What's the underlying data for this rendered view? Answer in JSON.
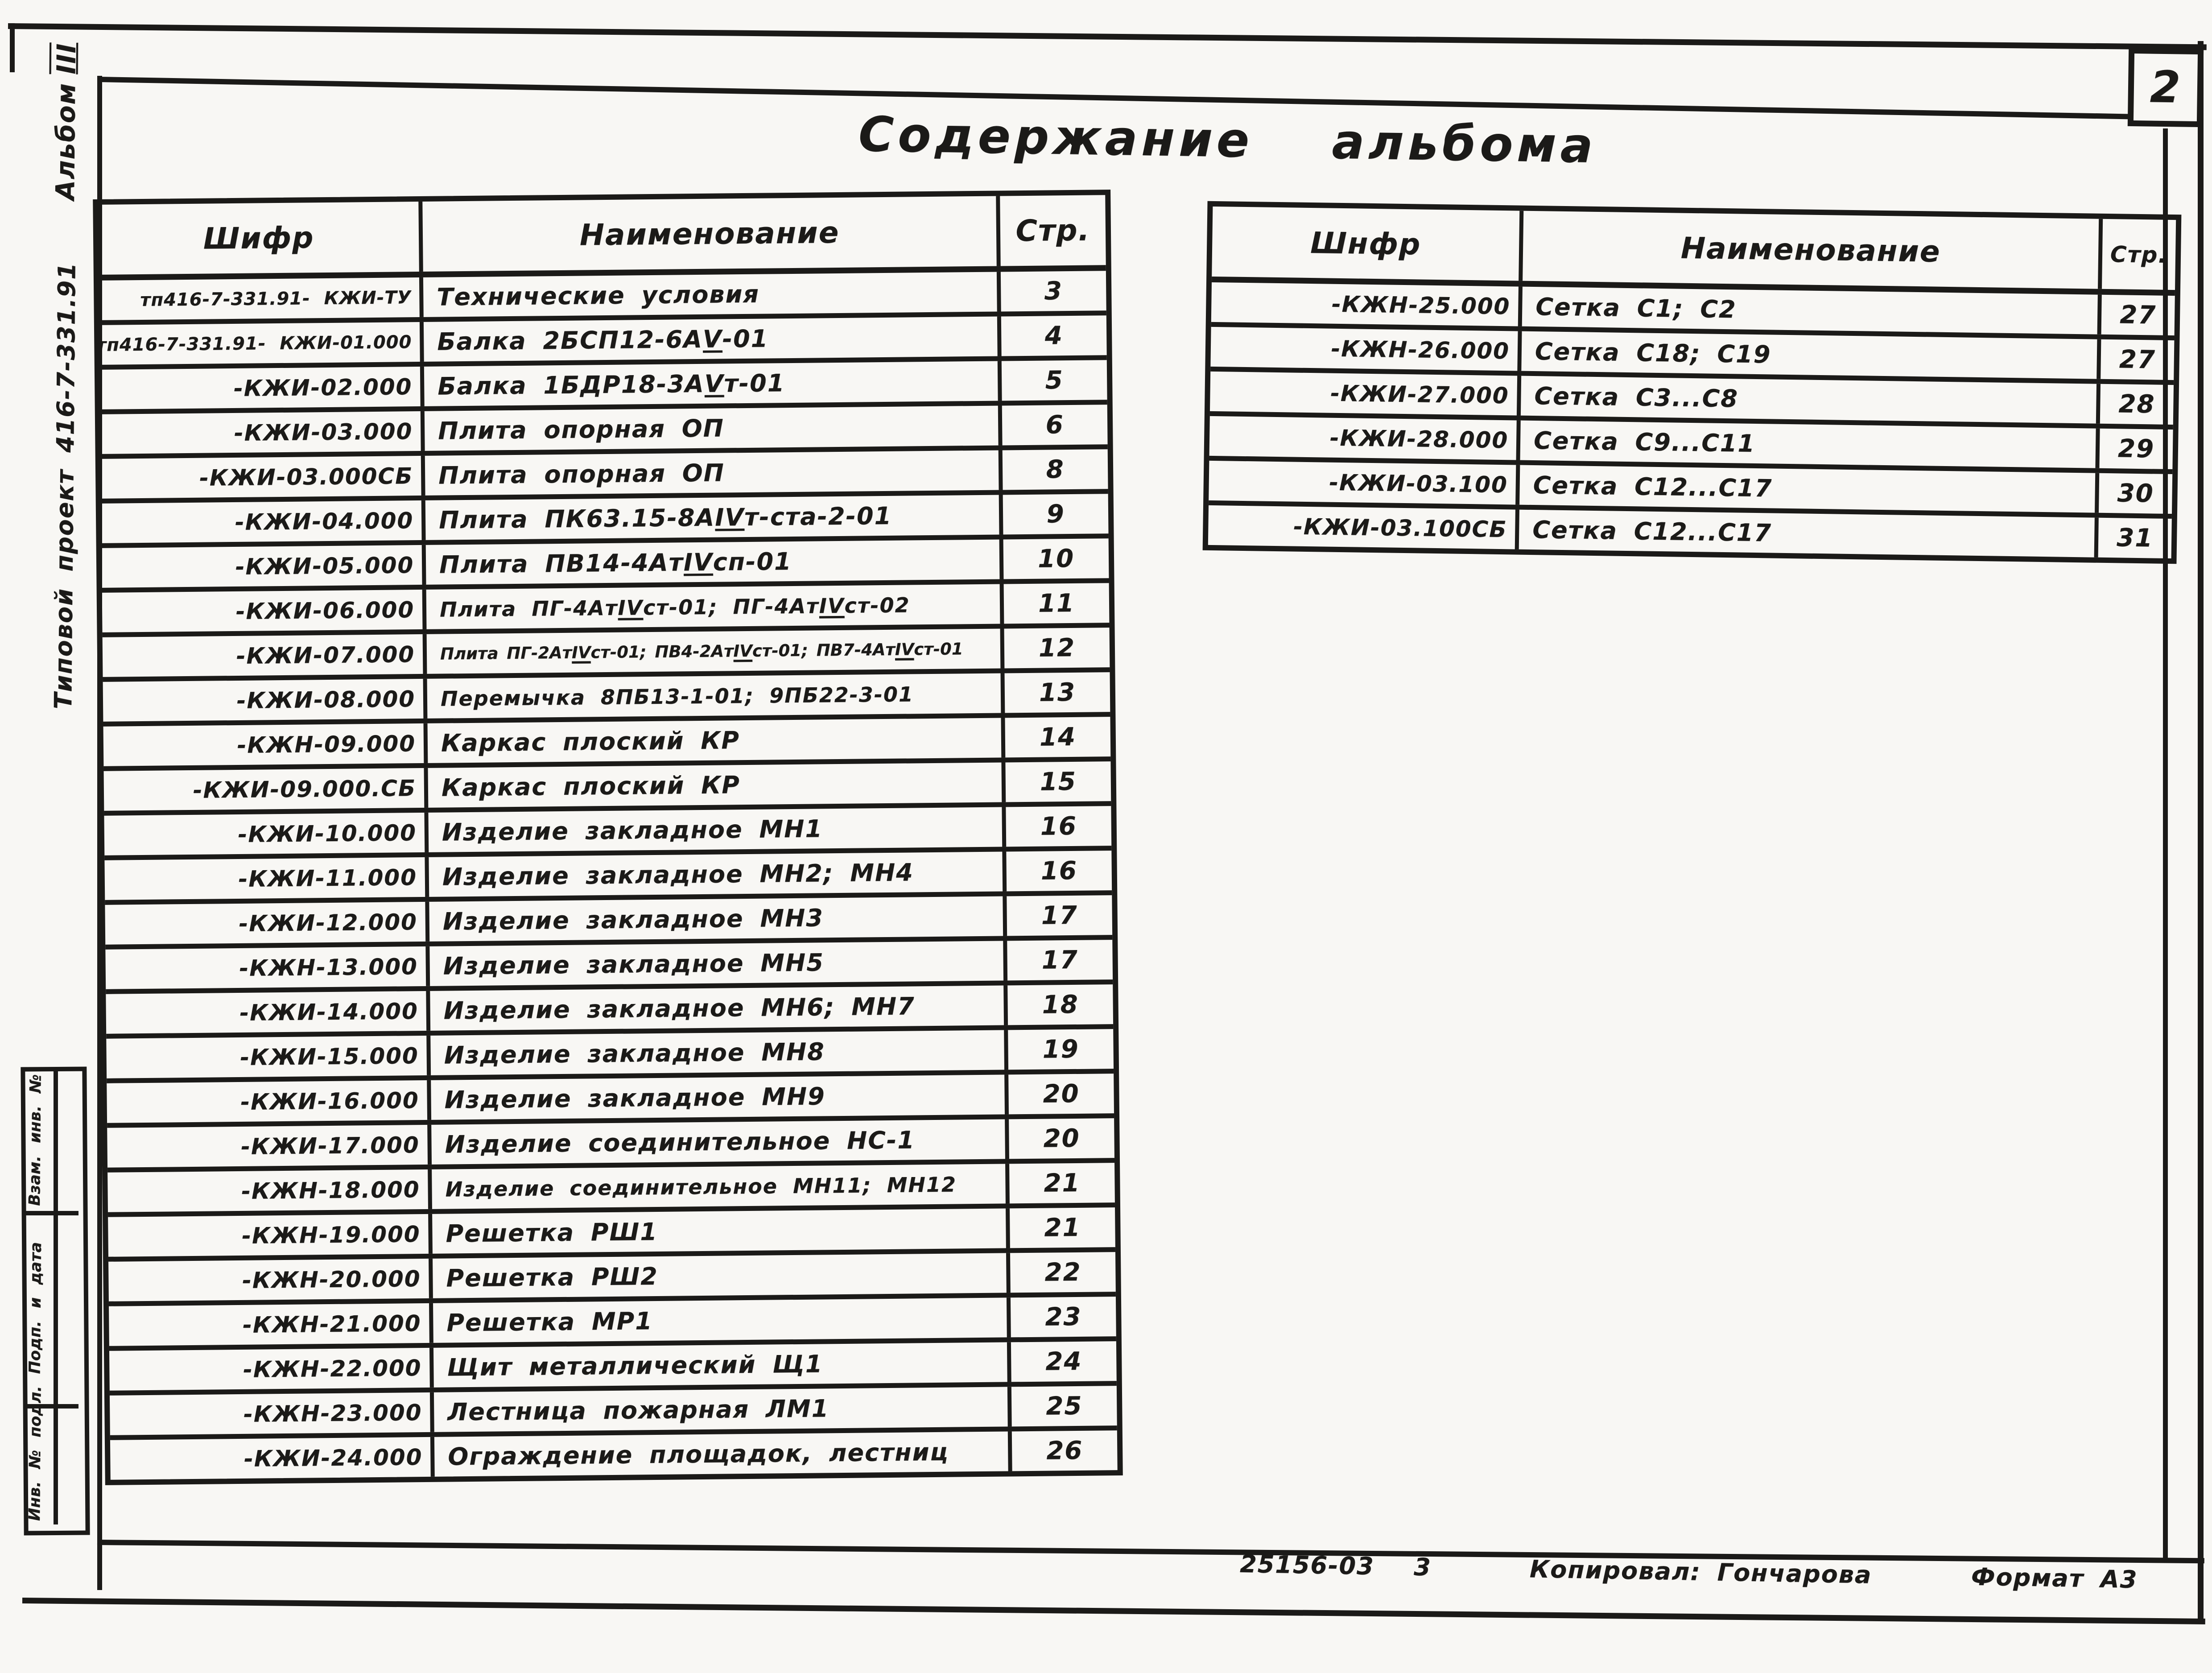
{
  "colors": {
    "ink": "#1b1a18",
    "paper": "#f8f7f4"
  },
  "sheet": {
    "page_number": "2",
    "title": "Содержание альбома",
    "footer": {
      "doc_number": "25156-03",
      "sheet_number": "3",
      "copied_by": "Копировал: Гончарова",
      "format": "Формат А3"
    },
    "left_margin": {
      "album_label": "Альбом",
      "album_number": "III",
      "project": "Типовой проект 416-7-331.91",
      "stamp_labels": [
        "Взам. инв. №",
        "Подп. и дата",
        "Инв. № подл."
      ]
    }
  },
  "left_table": {
    "headers": {
      "code": "Шифр",
      "name": "Наименование",
      "page": "Стр."
    },
    "rows": [
      {
        "code": "тп416-7-331.91- КЖИ-ТУ",
        "name": "Технические условия",
        "page": "3"
      },
      {
        "code": "тп416-7-331.91- КЖИ-01.000",
        "name": "Балка 2БСП12-6АV-01",
        "page": "4"
      },
      {
        "code": "-КЖИ-02.000",
        "name": "Балка 1БДР18-3АVт-01",
        "page": "5"
      },
      {
        "code": "-КЖИ-03.000",
        "name": "Плита опорная ОП",
        "page": "6"
      },
      {
        "code": "-КЖИ-03.000СБ",
        "name": "Плита опорная ОП",
        "page": "8"
      },
      {
        "code": "-КЖИ-04.000",
        "name": "Плита ПК63.15-8АIVт-ста-2-01",
        "page": "9"
      },
      {
        "code": "-КЖИ-05.000",
        "name": "Плита ПВ14-4АтIVсп-01",
        "page": "10"
      },
      {
        "code": "-КЖИ-06.000",
        "name": "Плита ПГ-4АтIVст-01; ПГ-4АтIVст-02",
        "page": "11"
      },
      {
        "code": "-КЖИ-07.000",
        "name": "Плита ПГ-2АтIVст-01; ПВ4-2АтIVст-01; ПВ7-4АтIVст-01",
        "page": "12"
      },
      {
        "code": "-КЖИ-08.000",
        "name": "Перемычка 8ПБ13-1-01; 9ПБ22-3-01",
        "page": "13"
      },
      {
        "code": "-КЖН-09.000",
        "name": "Каркас плоский КР",
        "page": "14"
      },
      {
        "code": "-КЖИ-09.000.СБ",
        "name": "Каркас плоский КР",
        "page": "15"
      },
      {
        "code": "-КЖИ-10.000",
        "name": "Изделие закладное МН1",
        "page": "16"
      },
      {
        "code": "-КЖИ-11.000",
        "name": "Изделие закладное МН2; МН4",
        "page": "16"
      },
      {
        "code": "-КЖИ-12.000",
        "name": "Изделие закладное МН3",
        "page": "17"
      },
      {
        "code": "-КЖН-13.000",
        "name": "Изделие закладное МН5",
        "page": "17"
      },
      {
        "code": "-КЖИ-14.000",
        "name": "Изделие закладное МН6; МН7",
        "page": "18"
      },
      {
        "code": "-КЖИ-15.000",
        "name": "Изделие закладное МН8",
        "page": "19"
      },
      {
        "code": "-КЖИ-16.000",
        "name": "Изделие закладное МН9",
        "page": "20"
      },
      {
        "code": "-КЖИ-17.000",
        "name": "Изделие соединительное НС-1",
        "page": "20"
      },
      {
        "code": "-КЖН-18.000",
        "name": "Изделие соединительное МН11; МН12",
        "page": "21"
      },
      {
        "code": "-КЖН-19.000",
        "name": "Решетка РШ1",
        "page": "21"
      },
      {
        "code": "-КЖН-20.000",
        "name": "Решетка РШ2",
        "page": "22"
      },
      {
        "code": "-КЖН-21.000",
        "name": "Решетка МР1",
        "page": "23"
      },
      {
        "code": "-КЖН-22.000",
        "name": "Щит металлический Щ1",
        "page": "24"
      },
      {
        "code": "-КЖН-23.000",
        "name": "Лестница пожарная ЛМ1",
        "page": "25"
      },
      {
        "code": "-КЖИ-24.000",
        "name": "Ограждение площадок, лестниц",
        "page": "26"
      }
    ]
  },
  "right_table": {
    "headers": {
      "code": "Шнфр",
      "name": "Наименование",
      "page": "Стр."
    },
    "rows": [
      {
        "code": "-КЖН-25.000",
        "name": "Сетка С1; С2",
        "page": "27"
      },
      {
        "code": "-КЖН-26.000",
        "name": "Сетка С18; С19",
        "page": "27"
      },
      {
        "code": "-КЖИ-27.000",
        "name": "Сетка С3...С8",
        "page": "28"
      },
      {
        "code": "-КЖИ-28.000",
        "name": "Сетка С9...С11",
        "page": "29"
      },
      {
        "code": "-КЖИ-03.100",
        "name": "Сетка С12...С17",
        "page": "30"
      },
      {
        "code": "-КЖИ-03.100СБ",
        "name": "Сетка С12...С17",
        "page": "31"
      }
    ]
  }
}
